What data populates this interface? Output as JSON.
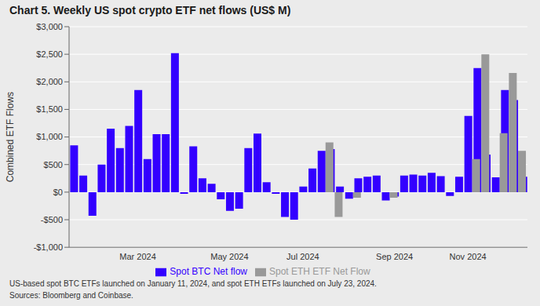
{
  "chart_data": {
    "type": "bar",
    "title": "Chart 5. Weekly US spot crypto ETF net flows (US$ M)",
    "y_label": "Combined ETF Flows",
    "annotations": [
      "US-based spot BTC ETFs launched on January 11, 2024, and spot ETH ETFs launched on July 23, 2024.",
      "Sources: Bloomberg and Coinbase."
    ],
    "categories": [
      null,
      null,
      null,
      null,
      null,
      null,
      null,
      "Mar 2024",
      null,
      null,
      null,
      null,
      null,
      null,
      null,
      null,
      null,
      "May 2024",
      null,
      null,
      null,
      null,
      null,
      null,
      null,
      "Jul 2024",
      null,
      null,
      null,
      null,
      null,
      null,
      null,
      null,
      null,
      "Sep 2024",
      null,
      null,
      null,
      null,
      null,
      null,
      null,
      "Nov 2024",
      null,
      null,
      null,
      null,
      null,
      null
    ],
    "series": [
      {
        "name": "Spot BTC Net flow",
        "color": "#3300ff",
        "values": [
          850,
          300,
          -430,
          500,
          1150,
          800,
          1200,
          1850,
          600,
          1050,
          1050,
          2520,
          -30,
          830,
          250,
          150,
          -130,
          -340,
          -300,
          800,
          1060,
          180,
          -30,
          -450,
          -500,
          100,
          430,
          750,
          780,
          100,
          -120,
          250,
          280,
          300,
          -150,
          -80,
          300,
          320,
          300,
          350,
          290,
          -70,
          280,
          1380,
          2250,
          680,
          270,
          1850,
          1670,
          280
        ]
      },
      {
        "name": "Spot ETH ETF Net Flow",
        "color": "#999999",
        "values": [
          null,
          null,
          null,
          null,
          null,
          null,
          null,
          null,
          null,
          null,
          null,
          null,
          null,
          null,
          null,
          null,
          null,
          null,
          null,
          null,
          null,
          null,
          null,
          null,
          null,
          null,
          null,
          null,
          900,
          -450,
          null,
          -100,
          null,
          null,
          null,
          -100,
          null,
          null,
          null,
          null,
          null,
          null,
          null,
          null,
          600,
          2500,
          null,
          1070,
          2160,
          750
        ]
      }
    ],
    "ylim": [
      -1000,
      3000
    ],
    "yticks": [
      {
        "value": -1000,
        "label": "-$1,000"
      },
      {
        "value": -500,
        "label": "-$500"
      },
      {
        "value": 0,
        "label": "$0"
      },
      {
        "value": 500,
        "label": "$500"
      },
      {
        "value": 1000,
        "label": "$1,000"
      },
      {
        "value": 1500,
        "label": "$1,500"
      },
      {
        "value": 2000,
        "label": "$2,000"
      },
      {
        "value": 2500,
        "label": "$2,500"
      },
      {
        "value": 3000,
        "label": "$3,000"
      }
    ],
    "grid": true,
    "legend": "bottom"
  }
}
